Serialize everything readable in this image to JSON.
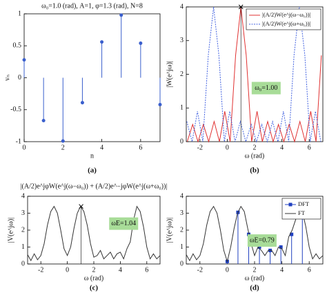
{
  "chart_data": [
    {
      "type": "stem",
      "title": "ω₀=1.0 (rad), A=1, φ=1.3 (rad), N=8",
      "x_label": "n",
      "y_label": "vₙ",
      "caption": "(a)",
      "xlim": [
        0,
        7
      ],
      "ylim": [
        -1,
        1
      ],
      "xticks": [
        0,
        2,
        4,
        6
      ],
      "yticks": [
        -1,
        -0.5,
        0,
        0.5,
        1
      ],
      "series": [
        {
          "color": "#3a5fcd",
          "x": [
            0,
            1,
            2,
            3,
            4,
            5,
            6,
            7
          ],
          "values": [
            0.28,
            -0.67,
            -0.99,
            -0.39,
            0.56,
            0.98,
            0.54,
            -0.42
          ]
        }
      ]
    },
    {
      "type": "line",
      "x_label": "ω (rad)",
      "y_label": "|W(e^jω)|",
      "caption": "(b)",
      "annotation": "ω₀=1.00",
      "legend": "upper right",
      "xlim": [
        -3,
        7
      ],
      "ylim": [
        0,
        4
      ],
      "xticks": [
        -2,
        0,
        2,
        4,
        6
      ],
      "yticks": [
        0,
        1,
        2,
        3,
        4
      ],
      "peak": {
        "x": 1,
        "y": 4
      },
      "series": [
        {
          "name": "|(A/2)W(e^j(ω−ω₀))|",
          "color": "#e03030",
          "dash": false,
          "x": [
            -2.93,
            -2.53,
            -2.14,
            -1.75,
            -1.36,
            -0.96,
            -0.57,
            -0.18,
            0.21,
            0.61,
            1,
            1.39,
            1.79,
            2.18,
            2.57,
            2.96,
            3.36,
            3.75,
            4.14,
            4.53,
            4.93,
            5.32,
            5.71,
            6.11,
            6.5,
            6.89
          ],
          "values": [
            0,
            0.51,
            0,
            0.51,
            0,
            0.6,
            0,
            0.9,
            0,
            2.56,
            4,
            2.56,
            0,
            0.9,
            0,
            0.6,
            0,
            0.51,
            0,
            0.51,
            0,
            0.6,
            0,
            0.9,
            0,
            2.56
          ]
        },
        {
          "name": "|(A/2)W(e^j(ω+ω₀))|",
          "color": "#4060e0",
          "dash": true,
          "x": [
            -2.96,
            -2.57,
            -2.18,
            -1.79,
            -1.39,
            -1,
            -0.61,
            -0.21,
            0.18,
            0.57,
            0.96,
            1.36,
            1.75,
            2.14,
            2.53,
            2.93,
            3.32,
            3.71,
            4.11,
            4.5,
            4.89,
            5.28,
            5.68,
            6.07,
            6.46,
            6.85
          ],
          "values": [
            0.6,
            0,
            0.9,
            0,
            2.56,
            4,
            2.56,
            0,
            0.9,
            0,
            0.6,
            0,
            0.51,
            0,
            0.51,
            0,
            0.6,
            0,
            0.9,
            0,
            2.56,
            4,
            2.56,
            0,
            0.9,
            0
          ]
        }
      ]
    },
    {
      "type": "line",
      "title": "|(A/2)e^jφW(e^j(ω−ω₀)) + (A/2)e^−jφW(e^j(ω+ω₀))|",
      "x_label": "ω (rad)",
      "y_label": "|V(e^jω)|",
      "caption": "(c)",
      "annotation": "ωE=1.04",
      "xlim": [
        -3,
        7
      ],
      "ylim": [
        0,
        4
      ],
      "xticks": [
        -2,
        0,
        2,
        4,
        6
      ],
      "yticks": [
        0,
        1,
        2,
        3,
        4
      ],
      "peak": {
        "x": 1.04,
        "y": 3.4
      },
      "series": [
        {
          "color": "#333333",
          "dash": false,
          "x": [
            -3,
            -2.75,
            -2.5,
            -2.25,
            -2,
            -1.75,
            -1.5,
            -1.25,
            -1,
            -0.75,
            -0.5,
            -0.25,
            0,
            0.25,
            0.5,
            0.75,
            1,
            1.25,
            1.5,
            1.75,
            2,
            2.25,
            2.5,
            2.75,
            3,
            3.25,
            3.5,
            3.75,
            4,
            4.25,
            4.5,
            4.75,
            5,
            5.25,
            5.5,
            5.75,
            6,
            6.25,
            6.5,
            6.75,
            7
          ],
          "values": [
            0.55,
            0.2,
            0.6,
            0.25,
            0.5,
            1.2,
            2.3,
            3.1,
            3.4,
            3,
            2,
            0.9,
            0.5,
            1,
            2.1,
            3,
            3.4,
            3.1,
            2.3,
            1.2,
            0.4,
            0.5,
            0.8,
            0.3,
            0.5,
            0.7,
            0.3,
            0.6,
            0.7,
            0.3,
            0.9,
            1.3,
            2.6,
            3.4,
            3.1,
            2.2,
            1,
            0.3,
            0.6,
            0.3,
            0.5
          ]
        }
      ]
    },
    {
      "type": "line",
      "x_label": "ω (rad)",
      "y_label": "|V(e^jω)|",
      "caption": "(d)",
      "annotation": "ωE=0.79",
      "legend": "upper right",
      "xlim": [
        -3,
        7
      ],
      "ylim": [
        0,
        4
      ],
      "xticks": [
        -2,
        0,
        2,
        4,
        6
      ],
      "yticks": [
        0,
        1,
        2,
        3,
        4
      ],
      "series": [
        {
          "name": "DFT",
          "kind": "stem",
          "color": "#2040c0",
          "x": [
            0,
            0.785,
            1.571,
            2.356,
            3.142,
            3.927,
            4.712,
            5.498
          ],
          "values": [
            0.15,
            3.05,
            1.75,
            1,
            0.8,
            1,
            1.75,
            3.05
          ]
        },
        {
          "name": "FT",
          "color": "#333333",
          "dash": false,
          "x": [
            -3,
            -2.75,
            -2.5,
            -2.25,
            -2,
            -1.75,
            -1.5,
            -1.25,
            -1,
            -0.75,
            -0.5,
            -0.25,
            0,
            0.25,
            0.5,
            0.75,
            1,
            1.25,
            1.5,
            1.75,
            2,
            2.25,
            2.5,
            2.75,
            3,
            3.25,
            3.5,
            3.75,
            4,
            4.25,
            4.5,
            4.75,
            5,
            5.25,
            5.5,
            5.75,
            6,
            6.25,
            6.5,
            6.75,
            7
          ],
          "values": [
            0.55,
            0.2,
            0.6,
            0.25,
            0.5,
            1.2,
            2.3,
            3.1,
            3.4,
            3,
            2,
            0.8,
            0.15,
            1,
            2.1,
            3,
            3.4,
            3.1,
            2.1,
            1.2,
            0.5,
            1,
            0.8,
            0.5,
            0.8,
            0.8,
            0.5,
            1,
            0.9,
            0.5,
            1.6,
            2,
            2.6,
            3.3,
            3.1,
            2.2,
            1,
            0.3,
            0.6,
            0.3,
            0.5
          ]
        }
      ]
    }
  ]
}
